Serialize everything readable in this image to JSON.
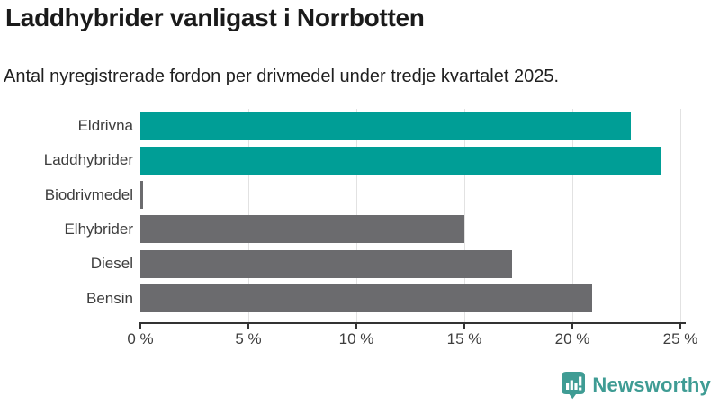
{
  "header": {
    "title": "Laddhybrider vanligast i Norrbotten",
    "subtitle": "Antal nyregistrerade fordon per drivmedel under tredje kvartalet 2025."
  },
  "colors": {
    "highlight_bar": "#009E96",
    "default_bar": "#6B6B6E",
    "gridline": "#e2e2e2",
    "axis": "#333333",
    "logo_teal": "#3F9C94"
  },
  "chart_data": {
    "type": "bar",
    "orientation": "horizontal",
    "title": "Laddhybrider vanligast i Norrbotten",
    "subtitle": "Antal nyregistrerade fordon per drivmedel under tredje kvartalet 2025.",
    "categories": [
      "Eldrivna",
      "Laddhybrider",
      "Biodrivmedel",
      "Elhybrider",
      "Diesel",
      "Bensin"
    ],
    "values": [
      22.7,
      24.1,
      0.13,
      15.0,
      17.2,
      20.9
    ],
    "bar_colors": [
      "#009E96",
      "#009E96",
      "#6B6B6E",
      "#6B6B6E",
      "#6B6B6E",
      "#6B6B6E"
    ],
    "xlabel": "",
    "ylabel": "",
    "xlim": [
      0,
      25
    ],
    "x_tick_values": [
      0,
      5,
      10,
      15,
      20,
      25
    ],
    "x_tick_labels": [
      "0 %",
      "5 %",
      "10 %",
      "15 %",
      "20 %",
      "25 %"
    ],
    "grid": "vertical-on",
    "legend": "none"
  },
  "footer": {
    "brand": "Newsworthy"
  }
}
